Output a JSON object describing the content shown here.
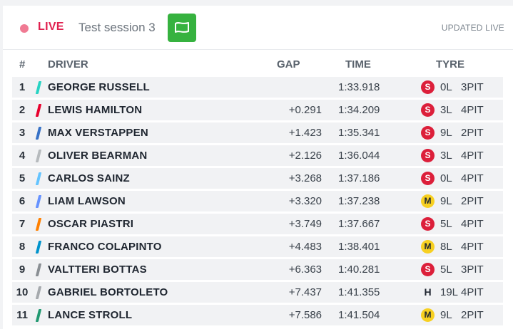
{
  "header": {
    "live_label": "LIVE",
    "session_name": "Test session 3",
    "flag_icon": "green-flag-icon",
    "flag_color": "#36b23f",
    "updated_label": "UPDATED LIVE"
  },
  "columns": {
    "pos": "#",
    "driver": "DRIVER",
    "gap": "GAP",
    "time": "TIME",
    "tyre": "TYRE"
  },
  "tyre_colors": {
    "S": "#dc1f3a",
    "M": "#f7d021",
    "H": "#ffffff"
  },
  "rows": [
    {
      "pos": "1",
      "driver": "GEORGE RUSSELL",
      "team_color": "#27d3c3",
      "gap": "",
      "time": "1:33.918",
      "tyre": "S",
      "laps": "0L",
      "pits": "3PIT"
    },
    {
      "pos": "2",
      "driver": "LEWIS HAMILTON",
      "team_color": "#e8002d",
      "gap": "+0.291",
      "time": "1:34.209",
      "tyre": "S",
      "laps": "3L",
      "pits": "4PIT"
    },
    {
      "pos": "3",
      "driver": "MAX VERSTAPPEN",
      "team_color": "#3671c6",
      "gap": "+1.423",
      "time": "1:35.341",
      "tyre": "S",
      "laps": "9L",
      "pits": "2PIT"
    },
    {
      "pos": "4",
      "driver": "OLIVER BEARMAN",
      "team_color": "#b6babd",
      "gap": "+2.126",
      "time": "1:36.044",
      "tyre": "S",
      "laps": "3L",
      "pits": "4PIT"
    },
    {
      "pos": "5",
      "driver": "CARLOS SAINZ",
      "team_color": "#64c4ff",
      "gap": "+3.268",
      "time": "1:37.186",
      "tyre": "S",
      "laps": "0L",
      "pits": "4PIT"
    },
    {
      "pos": "6",
      "driver": "LIAM LAWSON",
      "team_color": "#6692ff",
      "gap": "+3.320",
      "time": "1:37.238",
      "tyre": "M",
      "laps": "9L",
      "pits": "2PIT"
    },
    {
      "pos": "7",
      "driver": "OSCAR PIASTRI",
      "team_color": "#ff8000",
      "gap": "+3.749",
      "time": "1:37.667",
      "tyre": "S",
      "laps": "5L",
      "pits": "4PIT"
    },
    {
      "pos": "8",
      "driver": "FRANCO COLAPINTO",
      "team_color": "#0093cc",
      "gap": "+4.483",
      "time": "1:38.401",
      "tyre": "M",
      "laps": "8L",
      "pits": "4PIT"
    },
    {
      "pos": "9",
      "driver": "VALTTERI BOTTAS",
      "team_color": "#8a8f94",
      "gap": "+6.363",
      "time": "1:40.281",
      "tyre": "S",
      "laps": "5L",
      "pits": "3PIT"
    },
    {
      "pos": "10",
      "driver": "GABRIEL BORTOLETO",
      "team_color": "#a5a9ad",
      "gap": "+7.437",
      "time": "1:41.355",
      "tyre": "H",
      "laps": "19L",
      "pits": "4PIT"
    },
    {
      "pos": "11",
      "driver": "LANCE STROLL",
      "team_color": "#229971",
      "gap": "+7.586",
      "time": "1:41.504",
      "tyre": "M",
      "laps": "9L",
      "pits": "2PIT"
    }
  ]
}
